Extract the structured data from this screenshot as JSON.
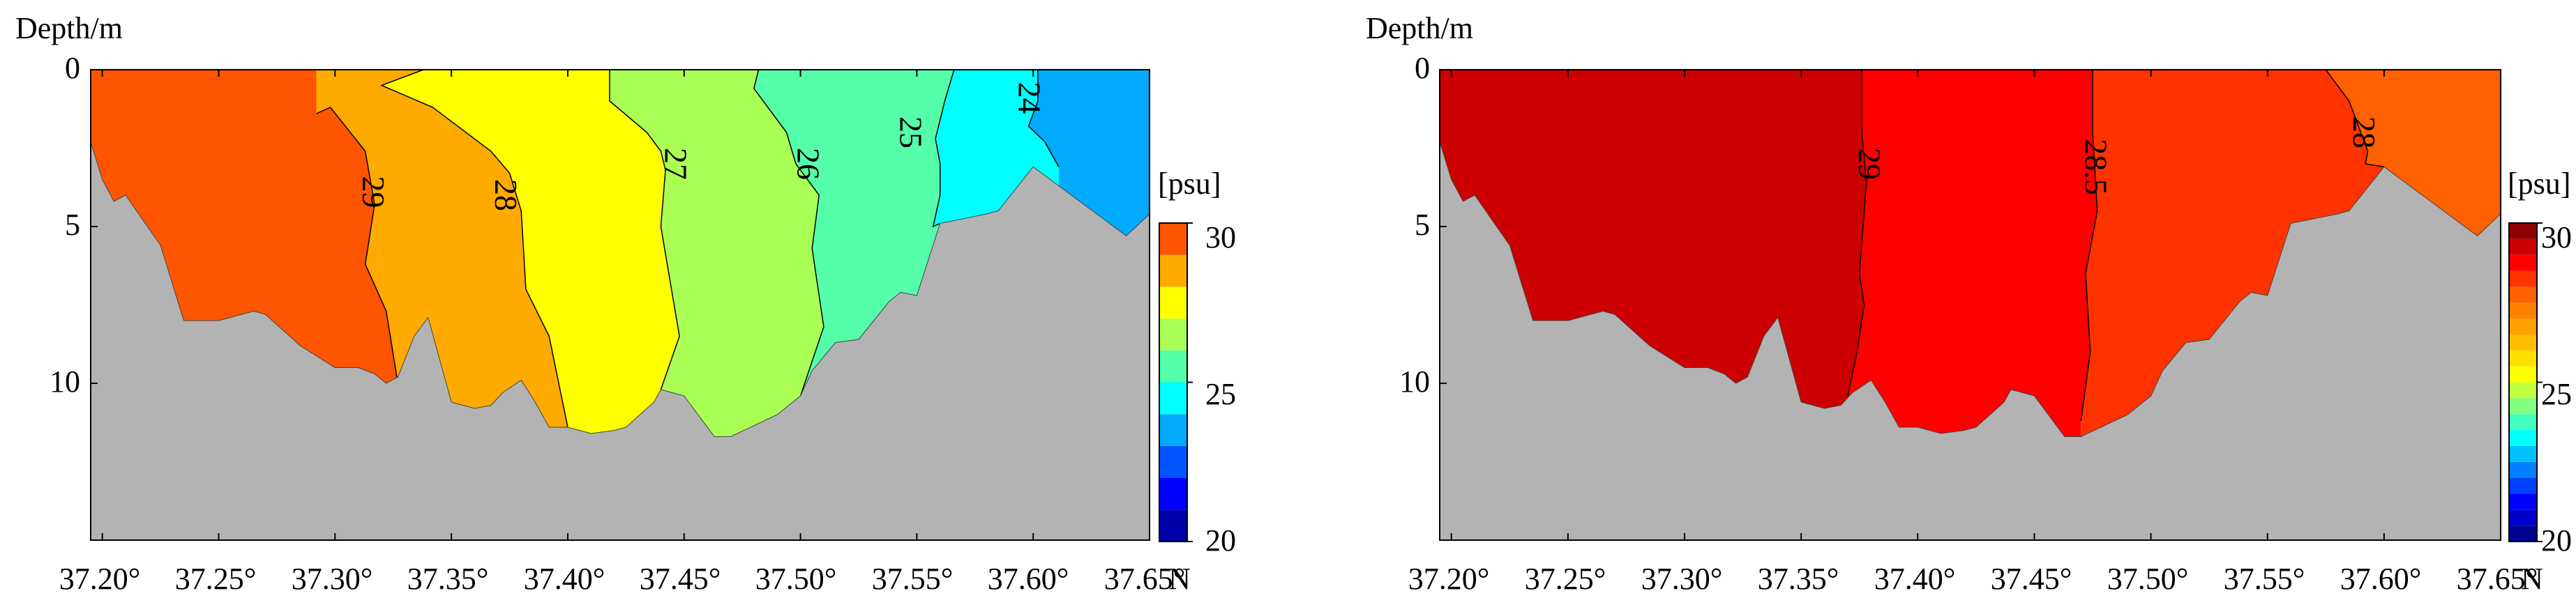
{
  "chart_data": [
    {
      "type": "contour",
      "panel": "left",
      "ylabel": "Depth/m",
      "x_unit": "N",
      "x_ticks": [
        "37.20°",
        "37.25°",
        "37.30°",
        "37.35°",
        "37.40°",
        "37.45°",
        "37.50°",
        "37.55°",
        "37.60°",
        "37.65°"
      ],
      "x_tick_values": [
        37.2,
        37.25,
        37.3,
        37.35,
        37.4,
        37.45,
        37.5,
        37.55,
        37.6,
        37.65
      ],
      "xlim": [
        37.195,
        37.65
      ],
      "y_ticks": [
        "0",
        "5",
        "10"
      ],
      "y_tick_values": [
        0,
        5,
        10
      ],
      "ylim": [
        0,
        15
      ],
      "y_reversed": true,
      "colorbar": {
        "unit": "[psu]",
        "min": 20,
        "max": 30,
        "ticks": [
          "30",
          "25",
          "20"
        ],
        "tick_values": [
          30,
          25,
          20
        ],
        "levels": 10
      },
      "seabed_depth": {
        "x": [
          37.195,
          37.2,
          37.205,
          37.21,
          37.225,
          37.235,
          37.25,
          37.265,
          37.27,
          37.285,
          37.3,
          37.31,
          37.317,
          37.322,
          37.327,
          37.334,
          37.34,
          37.35,
          37.36,
          37.367,
          37.372,
          37.38,
          37.386,
          37.392,
          37.4,
          37.41,
          37.42,
          37.425,
          37.437,
          37.44,
          37.45,
          37.463,
          37.47,
          37.49,
          37.5,
          37.505,
          37.515,
          37.525,
          37.538,
          37.543,
          37.55,
          37.56,
          37.58,
          37.585,
          37.6,
          37.62,
          37.64,
          37.65
        ],
        "depth": [
          2.3,
          3.5,
          4.2,
          4.0,
          5.6,
          8.0,
          8.0,
          7.7,
          7.8,
          8.8,
          9.5,
          9.5,
          9.7,
          10.0,
          9.8,
          8.5,
          7.9,
          10.6,
          10.8,
          10.7,
          10.3,
          9.9,
          10.6,
          11.4,
          11.4,
          11.6,
          11.5,
          11.4,
          10.6,
          10.2,
          10.4,
          11.7,
          11.7,
          11.0,
          10.4,
          9.6,
          8.7,
          8.6,
          7.4,
          7.1,
          7.2,
          4.9,
          4.6,
          4.5,
          3.1,
          4.2,
          5.3,
          4.6
        ]
      },
      "contour_labels": [
        {
          "text": "29",
          "x": 37.315,
          "depth": 3.9
        },
        {
          "text": "28",
          "x": 37.372,
          "depth": 4.0
        },
        {
          "text": "27",
          "x": 37.445,
          "depth": 3.0
        },
        {
          "text": "26",
          "x": 37.502,
          "depth": 3.0
        },
        {
          "text": "25",
          "x": 37.546,
          "depth": 2.0
        },
        {
          "text": "24",
          "x": 37.597,
          "depth": 0.9
        }
      ],
      "contour_lines": [
        {
          "level": 29,
          "x": [
            37.292,
            37.298,
            37.313,
            37.317,
            37.313,
            37.322,
            37.327
          ],
          "depth": [
            1.4,
            1.2,
            2.6,
            4.3,
            6.2,
            7.7,
            10.0
          ]
        },
        {
          "level": 28,
          "x": [
            37.338,
            37.32,
            37.342,
            37.367,
            37.375,
            37.38,
            37.382,
            37.392,
            37.4
          ],
          "depth": [
            0.0,
            0.5,
            1.2,
            2.6,
            3.3,
            4.5,
            7.0,
            8.5,
            11.4
          ]
        },
        {
          "level": 27,
          "x": [
            37.418,
            37.418,
            37.434,
            37.44,
            37.442,
            37.44,
            37.448,
            37.44
          ],
          "depth": [
            0.0,
            1.0,
            2.0,
            2.6,
            3.2,
            5.0,
            8.5,
            10.2
          ]
        },
        {
          "level": 26,
          "x": [
            37.482,
            37.48,
            37.494,
            37.498,
            37.508,
            37.505,
            37.51,
            37.5
          ],
          "depth": [
            0.0,
            0.6,
            2.0,
            3.0,
            4.0,
            5.7,
            8.2,
            10.4
          ]
        },
        {
          "level": 25,
          "x": [
            37.566,
            37.562,
            37.558,
            37.56,
            37.56,
            37.557,
            37.56
          ],
          "depth": [
            0.0,
            1.0,
            2.2,
            3.0,
            4.0,
            5.0,
            4.9
          ]
        },
        {
          "level": 24,
          "x": [
            37.602,
            37.602,
            37.598,
            37.605,
            37.611
          ],
          "depth": [
            0.0,
            1.0,
            1.8,
            2.3,
            3.1
          ]
        }
      ]
    },
    {
      "type": "contour",
      "panel": "right",
      "ylabel": "Depth/m",
      "x_unit": "N",
      "x_ticks": [
        "37.20°",
        "37.25°",
        "37.30°",
        "37.35°",
        "37.40°",
        "37.45°",
        "37.50°",
        "37.55°",
        "37.60°",
        "37.65°"
      ],
      "x_tick_values": [
        37.2,
        37.25,
        37.3,
        37.35,
        37.4,
        37.45,
        37.5,
        37.55,
        37.6,
        37.65
      ],
      "xlim": [
        37.195,
        37.65
      ],
      "y_ticks": [
        "0",
        "5",
        "10"
      ],
      "y_tick_values": [
        0,
        5,
        10
      ],
      "ylim": [
        0,
        15
      ],
      "y_reversed": true,
      "colorbar": {
        "unit": "[psu]",
        "min": 20,
        "max": 30,
        "ticks": [
          "30",
          "25",
          "20"
        ],
        "tick_values": [
          30,
          25,
          20
        ],
        "levels": 20
      },
      "seabed_depth": {
        "x": [
          37.195,
          37.2,
          37.205,
          37.21,
          37.225,
          37.235,
          37.25,
          37.265,
          37.27,
          37.285,
          37.3,
          37.31,
          37.317,
          37.322,
          37.327,
          37.334,
          37.34,
          37.35,
          37.36,
          37.367,
          37.372,
          37.38,
          37.386,
          37.392,
          37.4,
          37.41,
          37.42,
          37.425,
          37.437,
          37.44,
          37.45,
          37.463,
          37.47,
          37.49,
          37.5,
          37.505,
          37.515,
          37.525,
          37.538,
          37.543,
          37.55,
          37.56,
          37.58,
          37.585,
          37.6,
          37.62,
          37.64,
          37.65
        ],
        "depth": [
          2.3,
          3.5,
          4.2,
          4.0,
          5.6,
          8.0,
          8.0,
          7.7,
          7.8,
          8.8,
          9.5,
          9.5,
          9.7,
          10.0,
          9.8,
          8.5,
          7.9,
          10.6,
          10.8,
          10.7,
          10.3,
          9.9,
          10.6,
          11.4,
          11.4,
          11.6,
          11.5,
          11.4,
          10.6,
          10.2,
          10.4,
          11.7,
          11.7,
          11.0,
          10.4,
          9.6,
          8.7,
          8.6,
          7.4,
          7.1,
          7.2,
          4.9,
          4.6,
          4.5,
          3.1,
          4.2,
          5.3,
          4.6
        ]
      },
      "contour_labels": [
        {
          "text": "29",
          "x": 37.378,
          "depth": 3.0
        },
        {
          "text": "28.5",
          "x": 37.475,
          "depth": 3.1
        },
        {
          "text": "28",
          "x": 37.59,
          "depth": 2.0
        }
      ],
      "contour_lines": [
        {
          "level": 29,
          "x": [
            37.376,
            37.376,
            37.378,
            37.375,
            37.377,
            37.374,
            37.37
          ],
          "depth": [
            0.0,
            2.0,
            3.6,
            6.5,
            7.5,
            9.0,
            10.4
          ]
        },
        {
          "level": 28.5,
          "x": [
            37.475,
            37.475,
            37.477,
            37.472,
            37.474,
            37.47
          ],
          "depth": [
            0.0,
            2.0,
            4.5,
            6.5,
            9.0,
            11.2
          ]
        },
        {
          "level": 28,
          "x": [
            37.575,
            37.585,
            37.593,
            37.592,
            37.6
          ],
          "depth": [
            0.0,
            1.0,
            2.6,
            3.0,
            3.1
          ]
        }
      ]
    }
  ],
  "colors": {
    "seabed": "#b3b3b3",
    "left_bands": [
      {
        "from": 20,
        "to": 21,
        "color": "#0000aa"
      },
      {
        "from": 21,
        "to": 22,
        "color": "#0000ff"
      },
      {
        "from": 22,
        "to": 23,
        "color": "#0055ff"
      },
      {
        "from": 23,
        "to": 24,
        "color": "#00aaff"
      },
      {
        "from": 24,
        "to": 25,
        "color": "#00ffff"
      },
      {
        "from": 25,
        "to": 26,
        "color": "#55ffaa"
      },
      {
        "from": 26,
        "to": 27,
        "color": "#aaff55"
      },
      {
        "from": 27,
        "to": 28,
        "color": "#ffff00"
      },
      {
        "from": 28,
        "to": 29,
        "color": "#ffaa00"
      },
      {
        "from": 29,
        "to": 30,
        "color": "#ff5500"
      }
    ],
    "right_bands": [
      {
        "from": 20.0,
        "to": 20.5,
        "color": "#00008f"
      },
      {
        "from": 20.5,
        "to": 21.0,
        "color": "#0000cc"
      },
      {
        "from": 21.0,
        "to": 21.5,
        "color": "#0000ff"
      },
      {
        "from": 21.5,
        "to": 22.0,
        "color": "#0040ff"
      },
      {
        "from": 22.0,
        "to": 22.5,
        "color": "#0080ff"
      },
      {
        "from": 22.5,
        "to": 23.0,
        "color": "#00bfff"
      },
      {
        "from": 23.0,
        "to": 23.5,
        "color": "#00ffff"
      },
      {
        "from": 23.5,
        "to": 24.0,
        "color": "#40ffbf"
      },
      {
        "from": 24.0,
        "to": 24.5,
        "color": "#80ff80"
      },
      {
        "from": 24.5,
        "to": 25.0,
        "color": "#bfff40"
      },
      {
        "from": 25.0,
        "to": 25.5,
        "color": "#ffff00"
      },
      {
        "from": 25.5,
        "to": 26.0,
        "color": "#ffdf00"
      },
      {
        "from": 26.0,
        "to": 26.5,
        "color": "#ffbf00"
      },
      {
        "from": 26.5,
        "to": 27.0,
        "color": "#ff9f00"
      },
      {
        "from": 27.0,
        "to": 27.5,
        "color": "#ff8000"
      },
      {
        "from": 27.5,
        "to": 28.0,
        "color": "#ff6000"
      },
      {
        "from": 28.0,
        "to": 28.5,
        "color": "#ff3300"
      },
      {
        "from": 28.5,
        "to": 29.0,
        "color": "#ff0000"
      },
      {
        "from": 29.0,
        "to": 29.5,
        "color": "#cc0000"
      },
      {
        "from": 29.5,
        "to": 30.0,
        "color": "#8f0000"
      }
    ]
  }
}
